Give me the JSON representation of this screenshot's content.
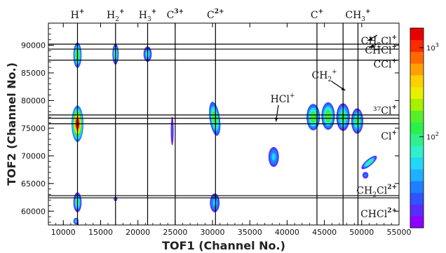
{
  "chart_data": {
    "type": "heatmap",
    "title": "",
    "xlabel": "TOF1 (Channel No.)",
    "ylabel": "TOF2 (Channel No.)",
    "xlim": [
      8000,
      55000
    ],
    "ylim": [
      57500,
      94000
    ],
    "x_ticks": [
      10000,
      15000,
      20000,
      25000,
      30000,
      35000,
      40000,
      45000,
      50000,
      55000
    ],
    "x_tick_labels": [
      "10000",
      "15000",
      "20000",
      "25000",
      "30000",
      "35000",
      "40000",
      "45000",
      "50000",
      "55000"
    ],
    "y_ticks": [
      60000,
      65000,
      70000,
      75000,
      80000,
      85000,
      90000
    ],
    "y_tick_labels": [
      "60000",
      "65000",
      "70000",
      "75000",
      "80000",
      "85000",
      "90000"
    ],
    "colorbar": {
      "scale": "log",
      "tick_labels": [
        {
          "value": 1000,
          "label": "10³",
          "base": "10",
          "exp": "3"
        },
        {
          "value": 100,
          "label": "10²",
          "base": "10",
          "exp": "2"
        }
      ],
      "colors": [
        "#8b00ff",
        "#5a2bff",
        "#2f54ff",
        "#1f80ff",
        "#1fb0ff",
        "#22d8f5",
        "#2ff0c8",
        "#2ff08c",
        "#2af04a",
        "#56f02a",
        "#a6f000",
        "#e8f000",
        "#ffd000",
        "#ffa000",
        "#ff6a00",
        "#ff2a00",
        "#e80000"
      ]
    },
    "vertical_lines": [
      {
        "x": 11900,
        "label": {
          "base": "H",
          "sub": "",
          "sup": "+"
        }
      },
      {
        "x": 17000,
        "label": {
          "base": "H",
          "sub": "2",
          "sup": "+"
        }
      },
      {
        "x": 21300,
        "label": {
          "base": "H",
          "sub": "3",
          "sup": "+"
        }
      },
      {
        "x": 25000,
        "label": {
          "base": "C",
          "sub": "",
          "sup": "3+"
        }
      },
      {
        "x": 30400,
        "label": {
          "base": "C",
          "sub": "",
          "sup": "2+"
        }
      },
      {
        "x": 44000,
        "label": {
          "base": "C",
          "sub": "",
          "sup": "+"
        }
      },
      {
        "x": 47500,
        "label": null
      },
      {
        "x": 49500,
        "label": {
          "base": "CH",
          "sub": "3",
          "sup": "+"
        }
      }
    ],
    "horizontal_lines": [
      {
        "y": 90200
      },
      {
        "y": 89300
      },
      {
        "y": 87300
      },
      {
        "y": 77400
      },
      {
        "y": 76800
      },
      {
        "y": 75800
      },
      {
        "y": 62800
      },
      {
        "y": 62400
      }
    ],
    "right_labels": [
      {
        "y": 90800,
        "base": "CH",
        "sub": "2",
        "mid": "Cl",
        "sup": "+"
      },
      {
        "y": 89100,
        "base": "CHCl",
        "sub": "",
        "mid": "",
        "sup": "+"
      },
      {
        "y": 86600,
        "base": "CCl",
        "sub": "",
        "mid": "",
        "sup": "+"
      },
      {
        "y": 78200,
        "base": "³⁷Cl",
        "sub": "",
        "mid": "",
        "sup": "+"
      },
      {
        "y": 73600,
        "base": "Cl",
        "sub": "",
        "mid": "",
        "sup": "+"
      },
      {
        "y": 63800,
        "base": "CH",
        "sub": "2",
        "mid": "Cl",
        "sup": "2+"
      },
      {
        "y": 59500,
        "base": "CHCl",
        "sub": "",
        "mid": "",
        "sup": "2+"
      }
    ],
    "inner_labels": [
      {
        "name": "HCl",
        "text": "HCl",
        "sup": "+",
        "x": 39400,
        "y": 79700,
        "arrow_to": [
          38500,
          76200
        ]
      },
      {
        "name": "CH2",
        "text": "CH",
        "sub": "2",
        "sup": "+",
        "x": 45000,
        "y": 84000,
        "arrow_to": [
          47800,
          81800
        ]
      }
    ],
    "islands": [
      {
        "ion": "H+ / CH2Cl+..CCl+",
        "x": 11900,
        "y": 88200,
        "sx": 550,
        "sy": 2300,
        "angle": 0,
        "level": 0.55
      },
      {
        "ion": "H+ / Cl+",
        "x": 11900,
        "y": 75800,
        "sx": 800,
        "sy": 3300,
        "angle": 0,
        "level": 1.0
      },
      {
        "ion": "H+ / CHCl2+",
        "x": 11900,
        "y": 61600,
        "sx": 550,
        "sy": 1800,
        "angle": 0,
        "level": 0.45
      },
      {
        "ion": "H+ low",
        "x": 11700,
        "y": 58200,
        "sx": 350,
        "sy": 600,
        "angle": 0,
        "level": 0.3
      },
      {
        "ion": "H2+ / CH2Cl+..CCl+",
        "x": 17000,
        "y": 88400,
        "sx": 420,
        "sy": 1900,
        "angle": 0,
        "level": 0.45
      },
      {
        "ion": "H2+ / CHCl2+",
        "x": 17000,
        "y": 62200,
        "sx": 250,
        "sy": 400,
        "angle": 0,
        "level": 0.25
      },
      {
        "ion": "H3+ / CH2Cl+..CCl+",
        "x": 21300,
        "y": 88400,
        "sx": 550,
        "sy": 1400,
        "angle": 0,
        "level": 0.4
      },
      {
        "ion": "C3+ / Cl+",
        "x": 24600,
        "y": 74500,
        "sx": 180,
        "sy": 2600,
        "angle": 0,
        "level": 0.12
      },
      {
        "ion": "C2+ / Cl+",
        "x": 30300,
        "y": 76700,
        "sx": 700,
        "sy": 3100,
        "angle": -8,
        "level": 0.55
      },
      {
        "ion": "C2+ / CHCl2+",
        "x": 30300,
        "y": 61500,
        "sx": 650,
        "sy": 1700,
        "angle": 0,
        "level": 0.3
      },
      {
        "ion": "unlabelled",
        "x": 38200,
        "y": 69800,
        "sx": 700,
        "sy": 1800,
        "angle": 0,
        "level": 0.3
      },
      {
        "ion": "C+ / Cl+ 1",
        "x": 43500,
        "y": 77000,
        "sx": 900,
        "sy": 2400,
        "angle": 0,
        "level": 0.55
      },
      {
        "ion": "C+ / Cl+ 2",
        "x": 45500,
        "y": 77200,
        "sx": 900,
        "sy": 2500,
        "angle": 0,
        "level": 0.55
      },
      {
        "ion": "C+ / Cl+ 3",
        "x": 47500,
        "y": 77000,
        "sx": 900,
        "sy": 2500,
        "angle": 0,
        "level": 0.5
      },
      {
        "ion": "C+ / Cl+ 4",
        "x": 49400,
        "y": 76300,
        "sx": 800,
        "sy": 2300,
        "angle": 0,
        "level": 0.5
      },
      {
        "ion": "CH3+ tail",
        "x": 51000,
        "y": 68800,
        "sx": 1300,
        "sy": 600,
        "angle": -40,
        "level": 0.45
      },
      {
        "ion": "CH3+ tail low",
        "x": 50500,
        "y": 66500,
        "sx": 400,
        "sy": 600,
        "angle": 0,
        "level": 0.2
      }
    ]
  }
}
